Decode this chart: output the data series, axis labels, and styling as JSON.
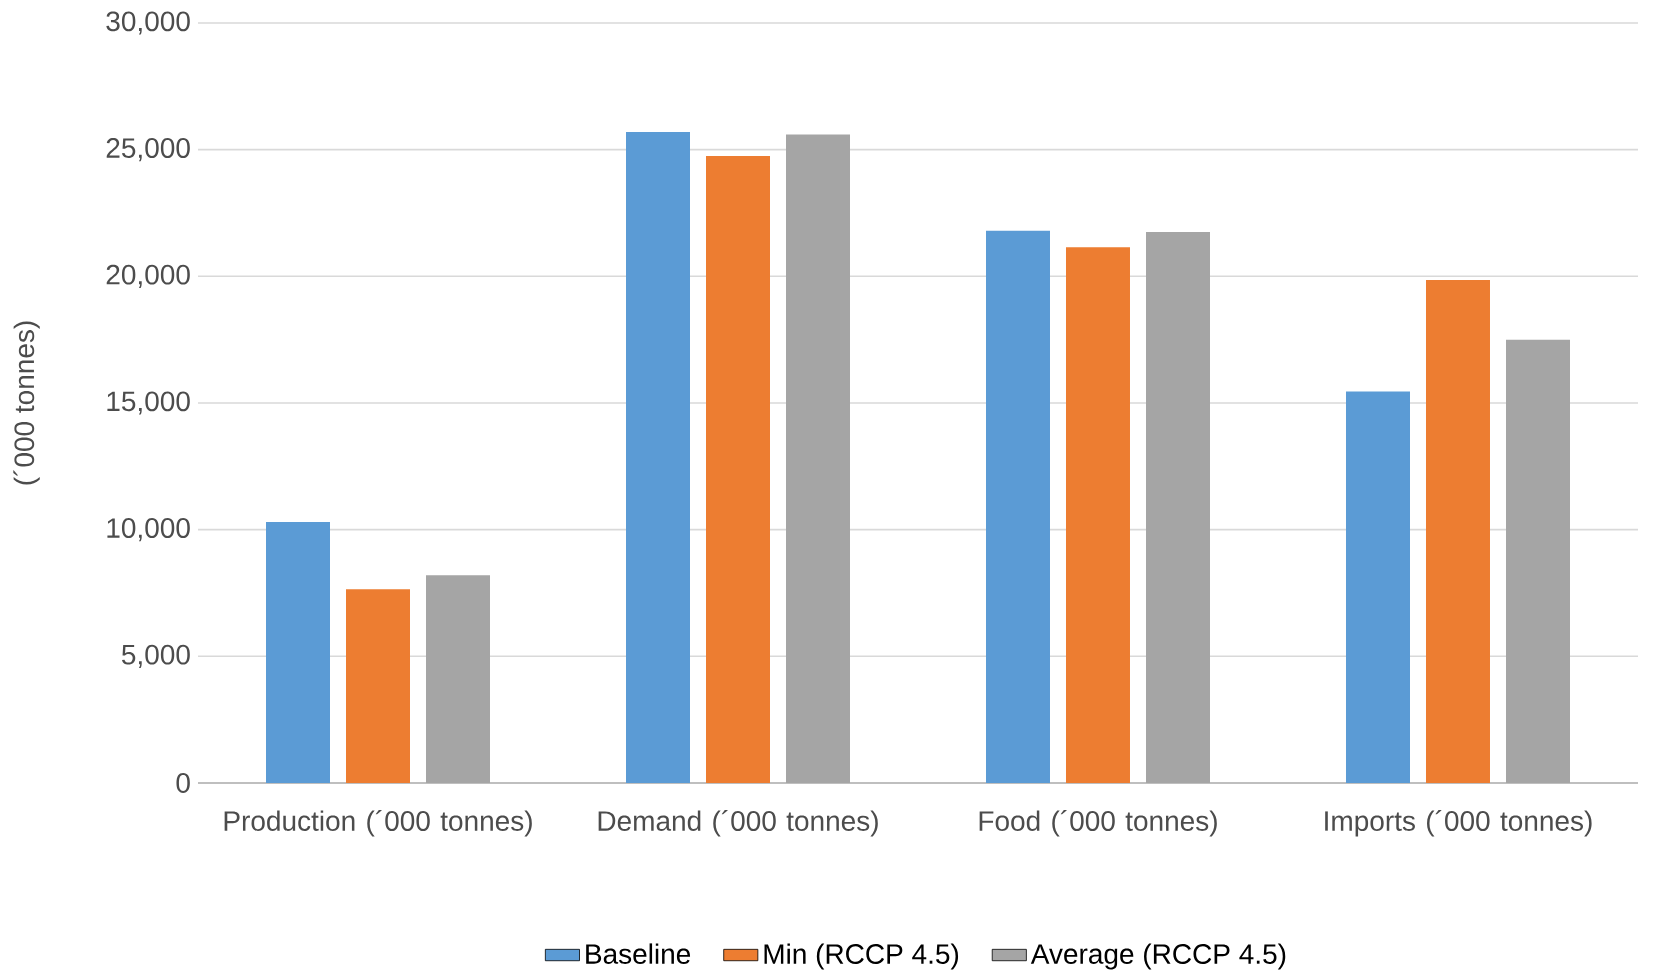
{
  "chart_data": {
    "type": "bar",
    "ylabel": "(´000 tonnes)",
    "categories": [
      "Production (´000 tonnes)",
      "Demand (´000 tonnes)",
      "Food (´000 tonnes)",
      "Imports (´000 tonnes)"
    ],
    "series": [
      {
        "name": "Baseline",
        "color": "#5b9bd5",
        "values": [
          10300,
          25700,
          21800,
          15450
        ]
      },
      {
        "name": "Min (RCCP 4.5)",
        "color": "#ed7d31",
        "values": [
          7650,
          24750,
          21150,
          19850
        ]
      },
      {
        "name": "Average (RCCP 4.5)",
        "color": "#a5a5a5",
        "values": [
          8200,
          25600,
          21750,
          17500
        ]
      }
    ],
    "ylim": [
      0,
      30000
    ],
    "yticks": [
      0,
      {
        "value": 5000,
        "label": "5,000"
      },
      {
        "value": 10000,
        "label": "10,000"
      },
      {
        "value": 15000,
        "label": "15,000"
      },
      {
        "value": 20000,
        "label": "20,000"
      },
      {
        "value": 25000,
        "label": "25,000"
      },
      {
        "value": 30000,
        "label": "30,000"
      }
    ],
    "grid": "y",
    "legend": "bottom"
  }
}
